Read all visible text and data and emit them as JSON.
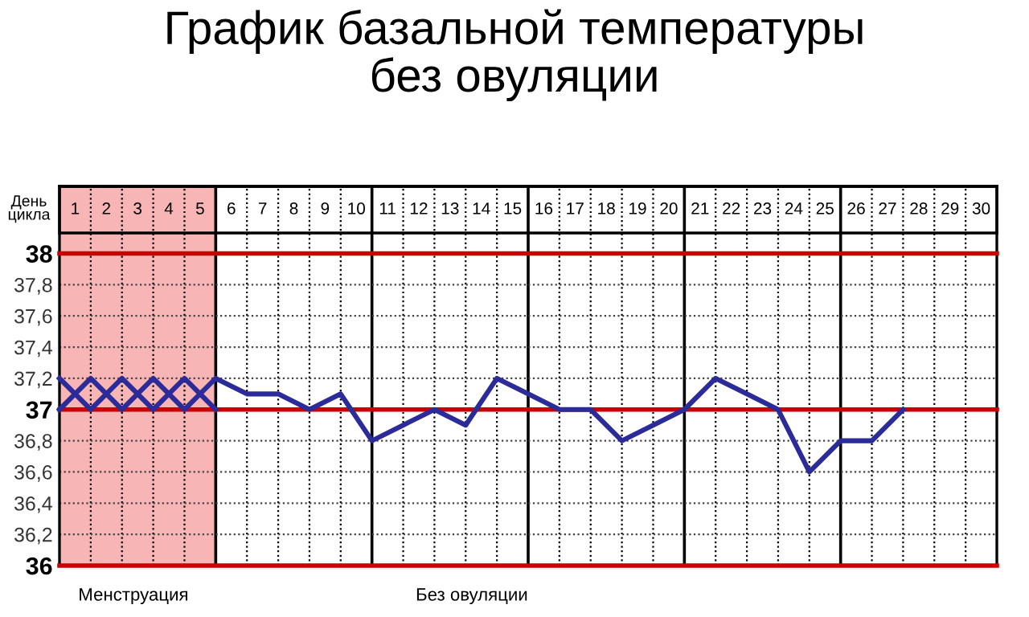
{
  "chart_data": {
    "type": "line",
    "title": "График базальной температуры\nбез овуляции",
    "xlabel": "День\nцикла",
    "xlim": [
      0.5,
      30.5
    ],
    "xticks": [
      1,
      2,
      3,
      4,
      5,
      6,
      7,
      8,
      9,
      10,
      11,
      12,
      13,
      14,
      15,
      16,
      17,
      18,
      19,
      20,
      21,
      22,
      23,
      24,
      25,
      26,
      27,
      28,
      29,
      30
    ],
    "ylim": [
      36,
      38.43
    ],
    "yticks": [
      {
        "value": 36,
        "label": "36"
      },
      {
        "value": 36.2,
        "label": "36,2"
      },
      {
        "value": 36.4,
        "label": "36,4"
      },
      {
        "value": 36.6,
        "label": "36,6"
      },
      {
        "value": 36.8,
        "label": "36,8"
      },
      {
        "value": 37,
        "label": "37"
      },
      {
        "value": 37.2,
        "label": "37,2"
      },
      {
        "value": 37.4,
        "label": "37,4"
      },
      {
        "value": 37.6,
        "label": "37,6"
      },
      {
        "value": 37.8,
        "label": "37,8"
      },
      {
        "value": 38,
        "label": "38"
      }
    ],
    "series": [
      {
        "color": "#2b2b9a",
        "x": [
          0.5,
          1.5,
          2.5,
          3.5,
          4.5,
          5.5
        ],
        "values": [
          37.2,
          37.0,
          37.2,
          37.0,
          37.2,
          37.0
        ]
      },
      {
        "color": "#2b2b9a",
        "x": [
          0.5,
          1.5,
          2.5,
          3.5,
          4.5,
          5.5,
          6.5,
          7.5,
          8.5,
          9.5,
          10.5,
          11.5,
          12.5,
          13.5,
          14.5,
          15.5,
          16.5,
          17.5,
          18.5,
          19.5,
          20.5,
          21.5,
          22.5,
          23.5,
          24.5,
          25.5,
          26.5,
          27.5
        ],
        "values": [
          37.0,
          37.2,
          37.0,
          37.2,
          37.0,
          37.2,
          37.1,
          37.1,
          37.0,
          37.1,
          36.8,
          36.9,
          37.0,
          36.9,
          37.2,
          37.1,
          37.0,
          37.0,
          36.8,
          36.9,
          37.0,
          37.2,
          37.1,
          37.0,
          36.6,
          36.8,
          36.8,
          37.0
        ]
      }
    ],
    "bands": [
      {
        "axis": "x",
        "from": 0.5,
        "to": 5.5,
        "color": "#f7b5b5"
      }
    ],
    "annotations": [
      "Менструация",
      "Без овуляции"
    ],
    "grid": true,
    "line_style": "solid",
    "marker": "none"
  }
}
